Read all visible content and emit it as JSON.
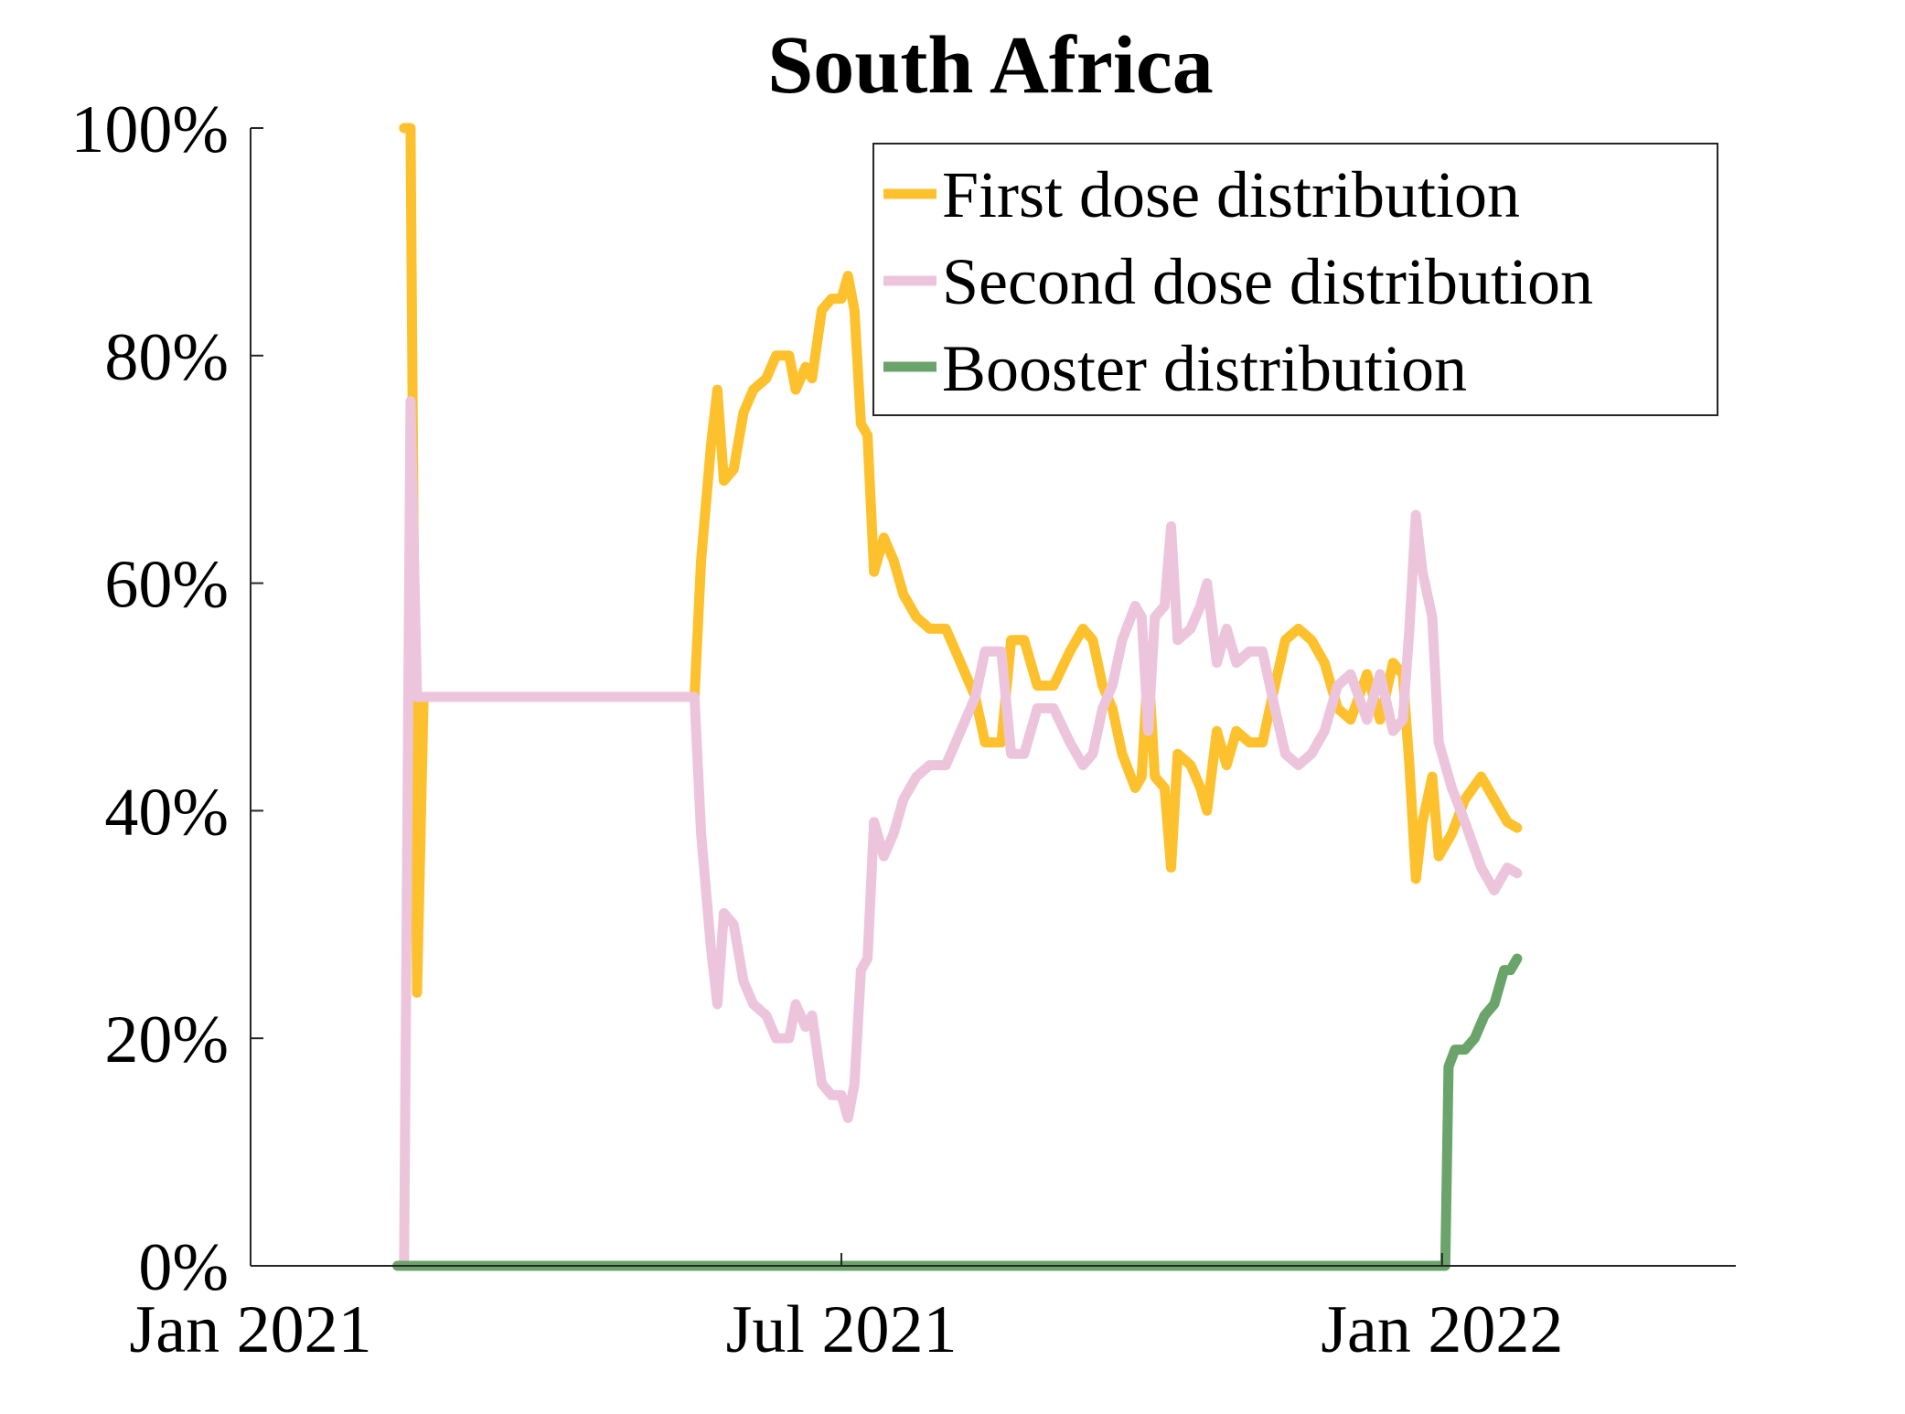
{
  "chart_data": {
    "type": "line",
    "title": "South Africa",
    "xlabel": "",
    "ylabel": "",
    "x_ticks": [
      "Jan 2021",
      "Jul 2021",
      "Jan 2022"
    ],
    "y_ticks": [
      "0%",
      "20%",
      "40%",
      "60%",
      "80%",
      "100%"
    ],
    "xlim": [
      "2021-01-01",
      "2022-04-01"
    ],
    "ylim": [
      0,
      100
    ],
    "legend_position": "top-right",
    "grid": false,
    "series": [
      {
        "name": "First dose distribution",
        "color": "#FDC12D",
        "points": [
          [
            "2021-02-17",
            100
          ],
          [
            "2021-02-19",
            100
          ],
          [
            "2021-02-21",
            24
          ],
          [
            "2021-02-23",
            50
          ],
          [
            "2021-05-17",
            50
          ],
          [
            "2021-05-19",
            62
          ],
          [
            "2021-05-22",
            72
          ],
          [
            "2021-05-24",
            77
          ],
          [
            "2021-05-26",
            69
          ],
          [
            "2021-05-29",
            70
          ],
          [
            "2021-06-01",
            75
          ],
          [
            "2021-06-04",
            77
          ],
          [
            "2021-06-08",
            78
          ],
          [
            "2021-06-11",
            80
          ],
          [
            "2021-06-15",
            80
          ],
          [
            "2021-06-17",
            77
          ],
          [
            "2021-06-20",
            79
          ],
          [
            "2021-06-22",
            78
          ],
          [
            "2021-06-25",
            84
          ],
          [
            "2021-06-28",
            85
          ],
          [
            "2021-07-01",
            85
          ],
          [
            "2021-07-03",
            87
          ],
          [
            "2021-07-05",
            84
          ],
          [
            "2021-07-07",
            74
          ],
          [
            "2021-07-09",
            73
          ],
          [
            "2021-07-11",
            61
          ],
          [
            "2021-07-14",
            64
          ],
          [
            "2021-07-17",
            62
          ],
          [
            "2021-07-20",
            59
          ],
          [
            "2021-07-24",
            57
          ],
          [
            "2021-07-28",
            56
          ],
          [
            "2021-08-02",
            56
          ],
          [
            "2021-08-05",
            54
          ],
          [
            "2021-08-08",
            52
          ],
          [
            "2021-08-11",
            50
          ],
          [
            "2021-08-14",
            46
          ],
          [
            "2021-08-19",
            46
          ],
          [
            "2021-08-22",
            55
          ],
          [
            "2021-08-26",
            55
          ],
          [
            "2021-08-30",
            51
          ],
          [
            "2021-09-04",
            51
          ],
          [
            "2021-09-09",
            54
          ],
          [
            "2021-09-13",
            56
          ],
          [
            "2021-09-16",
            55
          ],
          [
            "2021-09-19",
            51
          ],
          [
            "2021-09-22",
            49
          ],
          [
            "2021-09-25",
            45
          ],
          [
            "2021-09-29",
            42
          ],
          [
            "2021-10-01",
            43
          ],
          [
            "2021-10-03",
            53
          ],
          [
            "2021-10-05",
            43
          ],
          [
            "2021-10-08",
            42
          ],
          [
            "2021-10-10",
            35
          ],
          [
            "2021-10-12",
            45
          ],
          [
            "2021-10-16",
            44
          ],
          [
            "2021-10-19",
            42
          ],
          [
            "2021-10-21",
            40
          ],
          [
            "2021-10-24",
            47
          ],
          [
            "2021-10-27",
            44
          ],
          [
            "2021-10-30",
            47
          ],
          [
            "2021-11-03",
            46
          ],
          [
            "2021-11-07",
            46
          ],
          [
            "2021-11-10",
            50
          ],
          [
            "2021-11-14",
            55
          ],
          [
            "2021-11-18",
            56
          ],
          [
            "2021-11-22",
            55
          ],
          [
            "2021-11-26",
            53
          ],
          [
            "2021-11-30",
            49
          ],
          [
            "2021-12-04",
            48
          ],
          [
            "2021-12-09",
            52
          ],
          [
            "2021-12-13",
            48
          ],
          [
            "2021-12-17",
            53
          ],
          [
            "2021-12-20",
            52
          ],
          [
            "2021-12-22",
            44
          ],
          [
            "2021-12-24",
            34
          ],
          [
            "2021-12-26",
            39
          ],
          [
            "2021-12-29",
            43
          ],
          [
            "2021-12-31",
            36
          ],
          [
            "2022-01-04",
            38
          ],
          [
            "2022-01-08",
            41
          ],
          [
            "2022-01-13",
            43
          ],
          [
            "2022-01-17",
            41
          ],
          [
            "2022-01-21",
            39
          ],
          [
            "2022-01-24",
            38.5
          ]
        ]
      },
      {
        "name": "Second dose distribution",
        "color": "#ECC5DC",
        "points": [
          [
            "2021-02-17",
            0
          ],
          [
            "2021-02-19",
            76
          ],
          [
            "2021-02-21",
            50
          ],
          [
            "2021-05-17",
            50
          ],
          [
            "2021-05-19",
            38
          ],
          [
            "2021-05-22",
            28
          ],
          [
            "2021-05-24",
            23
          ],
          [
            "2021-05-26",
            31
          ],
          [
            "2021-05-29",
            30
          ],
          [
            "2021-06-01",
            25
          ],
          [
            "2021-06-04",
            23
          ],
          [
            "2021-06-08",
            22
          ],
          [
            "2021-06-11",
            20
          ],
          [
            "2021-06-15",
            20
          ],
          [
            "2021-06-17",
            23
          ],
          [
            "2021-06-20",
            21
          ],
          [
            "2021-06-22",
            22
          ],
          [
            "2021-06-25",
            16
          ],
          [
            "2021-06-28",
            15
          ],
          [
            "2021-07-01",
            15
          ],
          [
            "2021-07-03",
            13
          ],
          [
            "2021-07-05",
            16
          ],
          [
            "2021-07-07",
            26
          ],
          [
            "2021-07-09",
            27
          ],
          [
            "2021-07-11",
            39
          ],
          [
            "2021-07-14",
            36
          ],
          [
            "2021-07-17",
            38
          ],
          [
            "2021-07-20",
            41
          ],
          [
            "2021-07-24",
            43
          ],
          [
            "2021-07-28",
            44
          ],
          [
            "2021-08-02",
            44
          ],
          [
            "2021-08-05",
            46
          ],
          [
            "2021-08-08",
            48
          ],
          [
            "2021-08-11",
            50
          ],
          [
            "2021-08-14",
            54
          ],
          [
            "2021-08-19",
            54
          ],
          [
            "2021-08-22",
            45
          ],
          [
            "2021-08-26",
            45
          ],
          [
            "2021-08-30",
            49
          ],
          [
            "2021-09-04",
            49
          ],
          [
            "2021-09-09",
            46
          ],
          [
            "2021-09-13",
            44
          ],
          [
            "2021-09-16",
            45
          ],
          [
            "2021-09-19",
            49
          ],
          [
            "2021-09-22",
            51
          ],
          [
            "2021-09-25",
            55
          ],
          [
            "2021-09-29",
            58
          ],
          [
            "2021-10-01",
            57
          ],
          [
            "2021-10-03",
            47
          ],
          [
            "2021-10-05",
            57
          ],
          [
            "2021-10-08",
            58
          ],
          [
            "2021-10-10",
            65
          ],
          [
            "2021-10-12",
            55
          ],
          [
            "2021-10-16",
            56
          ],
          [
            "2021-10-19",
            58
          ],
          [
            "2021-10-21",
            60
          ],
          [
            "2021-10-24",
            53
          ],
          [
            "2021-10-27",
            56
          ],
          [
            "2021-10-30",
            53
          ],
          [
            "2021-11-03",
            54
          ],
          [
            "2021-11-07",
            54
          ],
          [
            "2021-11-10",
            50
          ],
          [
            "2021-11-14",
            45
          ],
          [
            "2021-11-18",
            44
          ],
          [
            "2021-11-22",
            45
          ],
          [
            "2021-11-26",
            47
          ],
          [
            "2021-11-30",
            51
          ],
          [
            "2021-12-04",
            52
          ],
          [
            "2021-12-09",
            48
          ],
          [
            "2021-12-13",
            52
          ],
          [
            "2021-12-17",
            47
          ],
          [
            "2021-12-20",
            48
          ],
          [
            "2021-12-22",
            56
          ],
          [
            "2021-12-24",
            66
          ],
          [
            "2021-12-26",
            61
          ],
          [
            "2021-12-29",
            57
          ],
          [
            "2021-12-31",
            46
          ],
          [
            "2022-01-04",
            42
          ],
          [
            "2022-01-08",
            39
          ],
          [
            "2022-01-13",
            35
          ],
          [
            "2022-01-17",
            33
          ],
          [
            "2022-01-21",
            35
          ],
          [
            "2022-01-24",
            34.5
          ]
        ]
      },
      {
        "name": "Booster distribution",
        "color": "#6AA46A",
        "points": [
          [
            "2021-02-15",
            0
          ],
          [
            "2021-12-31",
            0
          ],
          [
            "2022-01-02",
            0
          ],
          [
            "2022-01-03",
            17.5
          ],
          [
            "2022-01-05",
            19
          ],
          [
            "2022-01-08",
            19
          ],
          [
            "2022-01-11",
            20
          ],
          [
            "2022-01-14",
            22
          ],
          [
            "2022-01-17",
            23
          ],
          [
            "2022-01-20",
            26
          ],
          [
            "2022-01-22",
            26
          ],
          [
            "2022-01-24",
            27
          ]
        ]
      }
    ]
  }
}
